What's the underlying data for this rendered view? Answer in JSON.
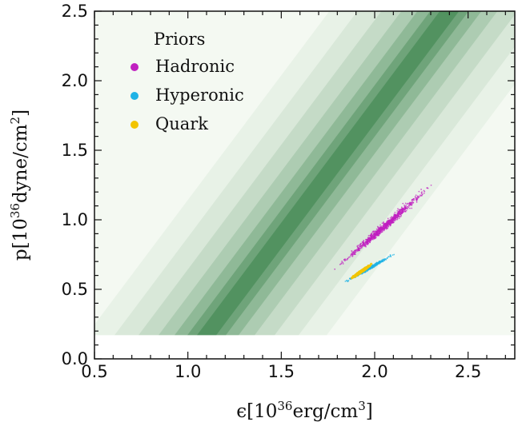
{
  "chart_data": {
    "type": "scatter",
    "xlim": [
      0.5,
      2.75
    ],
    "ylim": [
      0.0,
      2.5
    ],
    "x_ticks": [
      "0.5",
      "1.0",
      "1.5",
      "2.0",
      "2.5"
    ],
    "y_ticks": [
      "0.0",
      "0.5",
      "1.0",
      "1.5",
      "2.0",
      "2.5"
    ],
    "xlabel": {
      "pre": "ϵ[10",
      "sup1": "36",
      "mid": "erg/cm",
      "sup2": "3",
      "post": "]"
    },
    "ylabel": {
      "pre": "p[10",
      "sup1": "36",
      "mid": "dyne/cm",
      "sup2": "2",
      "post": "]"
    },
    "grid": false,
    "background_band": {
      "description_type": "density",
      "color": "#1b6e2f",
      "y_range": [
        0.17,
        2.5
      ],
      "center_line": {
        "x_at_y_low": 1.1,
        "y_low": 0.17,
        "x_at_y_high": 2.4,
        "y_high": 2.5
      }
    },
    "legend": {
      "title": "Priors",
      "placement": "top-left",
      "entries": [
        {
          "label": "Hadronic",
          "color": "#c020c0"
        },
        {
          "label": "Hyperonic",
          "color": "#1fb3e6"
        },
        {
          "label": "Quark",
          "color": "#f2c400"
        }
      ]
    },
    "series": [
      {
        "name": "Hadronic",
        "color": "#c020c0",
        "center": [
          2.05,
          0.95
        ],
        "x_range": [
          1.8,
          2.4
        ],
        "y_range": [
          0.65,
          1.35
        ]
      },
      {
        "name": "Hyperonic",
        "color": "#1fb3e6",
        "center": [
          1.97,
          0.65
        ],
        "x_range": [
          1.85,
          2.15
        ],
        "y_range": [
          0.55,
          0.78
        ]
      },
      {
        "name": "Quark",
        "color": "#f2c400",
        "center": [
          1.93,
          0.63
        ],
        "x_range": [
          1.87,
          2.0
        ],
        "y_range": [
          0.58,
          0.7
        ]
      }
    ]
  }
}
